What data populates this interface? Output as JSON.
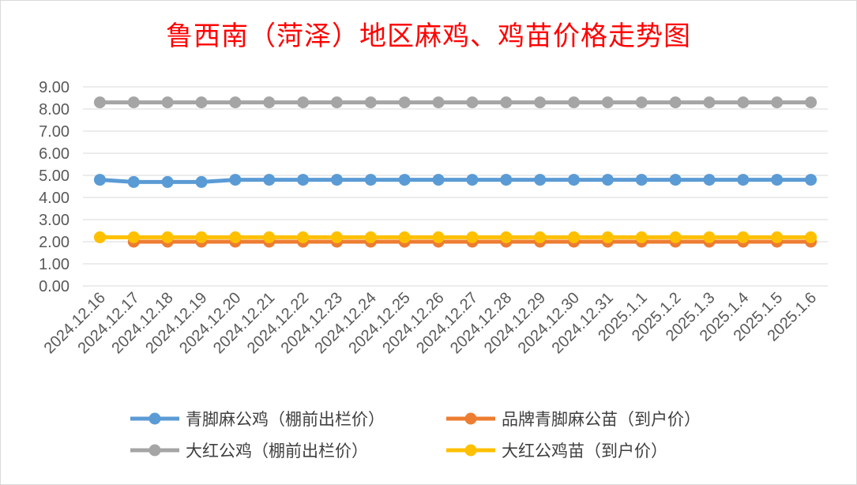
{
  "chart_data": {
    "type": "line",
    "title": "鲁西南（菏泽）地区麻鸡、鸡苗价格走势图",
    "xlabel": "",
    "ylabel": "",
    "ylim": [
      0,
      9
    ],
    "ytick_labels": [
      "0.00",
      "1.00",
      "2.00",
      "3.00",
      "4.00",
      "5.00",
      "6.00",
      "7.00",
      "8.00",
      "9.00"
    ],
    "grid": true,
    "legend_position": "bottom",
    "categories": [
      "2024.12.16",
      "2024.12.17",
      "2024.12.18",
      "2024.12.19",
      "2024.12.20",
      "2024.12.21",
      "2024.12.22",
      "2024.12.23",
      "2024.12.24",
      "2024.12.25",
      "2024.12.26",
      "2024.12.27",
      "2024.12.28",
      "2024.12.29",
      "2024.12.30",
      "2024.12.31",
      "2025.1.1",
      "2025.1.2",
      "2025.1.3",
      "2025.1.4",
      "2025.1.5",
      "2025.1.6"
    ],
    "series": [
      {
        "name": "青脚麻公鸡（棚前出栏价）",
        "color": "#5b9bd5",
        "values": [
          4.8,
          4.7,
          4.7,
          4.7,
          4.8,
          4.8,
          4.8,
          4.8,
          4.8,
          4.8,
          4.8,
          4.8,
          4.8,
          4.8,
          4.8,
          4.8,
          4.8,
          4.8,
          4.8,
          4.8,
          4.8,
          4.8
        ]
      },
      {
        "name": "品牌青脚麻公苗（到户价）",
        "color": "#ed7d31",
        "values": [
          null,
          2.0,
          2.0,
          2.0,
          2.0,
          2.0,
          2.0,
          2.0,
          2.0,
          2.0,
          2.0,
          2.0,
          2.0,
          2.0,
          2.0,
          2.0,
          2.0,
          2.0,
          2.0,
          2.0,
          2.0,
          2.0
        ]
      },
      {
        "name": "大红公鸡（棚前出栏价）",
        "color": "#a5a5a5",
        "values": [
          8.3,
          8.3,
          8.3,
          8.3,
          8.3,
          8.3,
          8.3,
          8.3,
          8.3,
          8.3,
          8.3,
          8.3,
          8.3,
          8.3,
          8.3,
          8.3,
          8.3,
          8.3,
          8.3,
          8.3,
          8.3,
          8.3
        ]
      },
      {
        "name": "大红公鸡苗（到户价）",
        "color": "#ffc000",
        "values": [
          2.2,
          2.2,
          2.2,
          2.2,
          2.2,
          2.2,
          2.2,
          2.2,
          2.2,
          2.2,
          2.2,
          2.2,
          2.2,
          2.2,
          2.2,
          2.2,
          2.2,
          2.2,
          2.2,
          2.2,
          2.2,
          2.2
        ]
      }
    ]
  }
}
